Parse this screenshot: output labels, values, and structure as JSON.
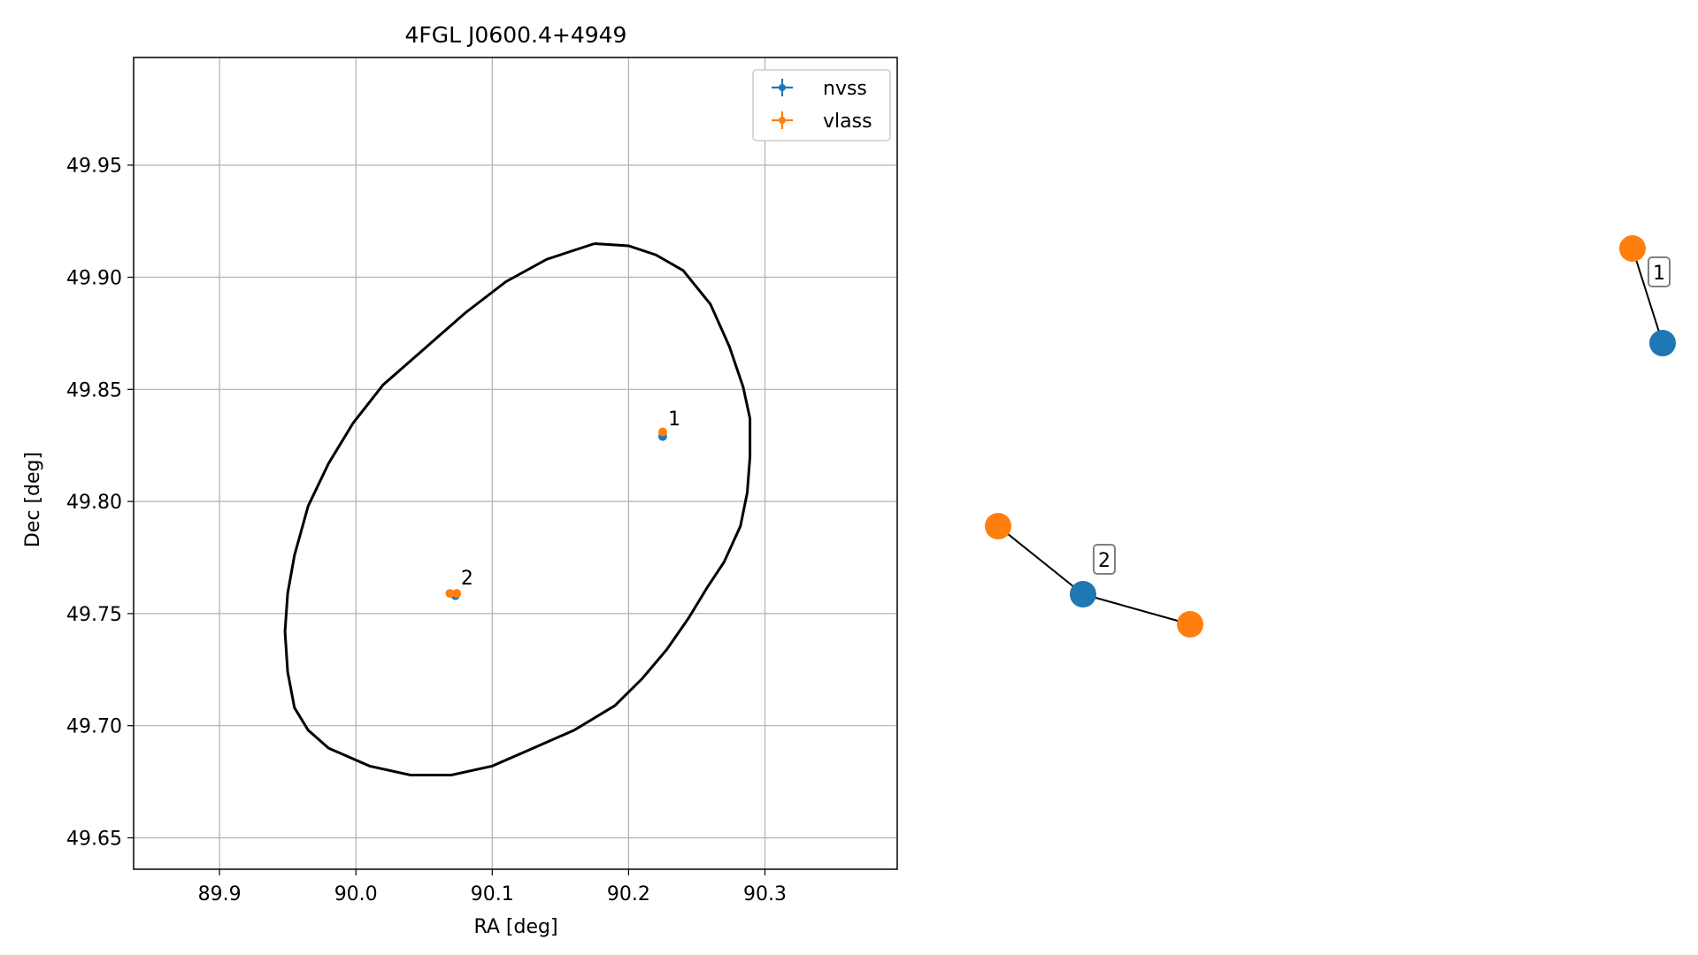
{
  "chart_data": [
    {
      "type": "scatter",
      "title": "4FGL J0600.4+4949",
      "xlabel": "RA [deg]",
      "ylabel": "Dec [deg]",
      "xlim": [
        89.837,
        90.397
      ],
      "ylim": [
        49.636,
        49.998
      ],
      "xticks": [
        89.9,
        90.0,
        90.1,
        90.2,
        90.3
      ],
      "xtick_labels": [
        "89.9",
        "90.0",
        "90.1",
        "90.2",
        "90.3"
      ],
      "yticks": [
        49.65,
        49.7,
        49.75,
        49.8,
        49.85,
        49.9,
        49.95
      ],
      "ytick_labels": [
        "49.65",
        "49.70",
        "49.75",
        "49.80",
        "49.85",
        "49.90",
        "49.95"
      ],
      "grid": true,
      "legend_position": "top-right",
      "series": [
        {
          "name": "nvss",
          "color": "#1f77b4",
          "points": [
            {
              "x": 90.225,
              "y": 49.829
            },
            {
              "x": 90.073,
              "y": 49.758
            }
          ]
        },
        {
          "name": "vlass",
          "color": "#ff7f0e",
          "points": [
            {
              "x": 90.225,
              "y": 49.831
            },
            {
              "x": 90.069,
              "y": 49.759
            },
            {
              "x": 90.074,
              "y": 49.759
            }
          ]
        }
      ],
      "annotations": [
        {
          "text": "1",
          "x": 90.229,
          "y": 49.834
        },
        {
          "text": "2",
          "x": 90.077,
          "y": 49.763
        }
      ],
      "ellipse": {
        "color": "#000000",
        "center": [
          90.12,
          49.817
        ],
        "points": [
          [
            90.175,
            49.915
          ],
          [
            90.2,
            49.914
          ],
          [
            90.22,
            49.91
          ],
          [
            90.24,
            49.903
          ],
          [
            90.26,
            49.888
          ],
          [
            90.274,
            49.869
          ],
          [
            90.284,
            49.851
          ],
          [
            90.289,
            49.837
          ],
          [
            90.289,
            49.82
          ],
          [
            90.287,
            49.804
          ],
          [
            90.282,
            49.789
          ],
          [
            90.27,
            49.773
          ],
          [
            90.258,
            49.762
          ],
          [
            90.244,
            49.748
          ],
          [
            90.228,
            49.734
          ],
          [
            90.21,
            49.721
          ],
          [
            90.19,
            49.709
          ],
          [
            90.16,
            49.698
          ],
          [
            90.13,
            49.69
          ],
          [
            90.1,
            49.682
          ],
          [
            90.07,
            49.678
          ],
          [
            90.04,
            49.678
          ],
          [
            90.01,
            49.682
          ],
          [
            89.98,
            49.69
          ],
          [
            89.965,
            49.698
          ],
          [
            89.955,
            49.708
          ],
          [
            89.95,
            49.724
          ],
          [
            89.948,
            49.742
          ],
          [
            89.95,
            49.759
          ],
          [
            89.955,
            49.776
          ],
          [
            89.965,
            49.798
          ],
          [
            89.98,
            49.817
          ],
          [
            89.998,
            49.835
          ],
          [
            90.02,
            49.852
          ],
          [
            90.05,
            49.868
          ],
          [
            90.08,
            49.884
          ],
          [
            90.11,
            49.898
          ],
          [
            90.14,
            49.908
          ],
          [
            90.175,
            49.915
          ]
        ]
      }
    },
    {
      "type": "network",
      "nodes": [
        {
          "id": "n1",
          "group": "vlass",
          "color": "#ff7f0e"
        },
        {
          "id": "n2",
          "group": "nvss",
          "color": "#1f77b4"
        },
        {
          "id": "n3",
          "group": "vlass",
          "color": "#ff7f0e"
        },
        {
          "id": "n4",
          "group": "nvss",
          "color": "#1f77b4"
        },
        {
          "id": "n5",
          "group": "vlass",
          "color": "#ff7f0e"
        }
      ],
      "edges": [
        [
          "n1",
          "n2"
        ],
        [
          "n3",
          "n4"
        ],
        [
          "n4",
          "n5"
        ]
      ],
      "labels": [
        {
          "text": "1"
        },
        {
          "text": "2"
        }
      ]
    }
  ]
}
